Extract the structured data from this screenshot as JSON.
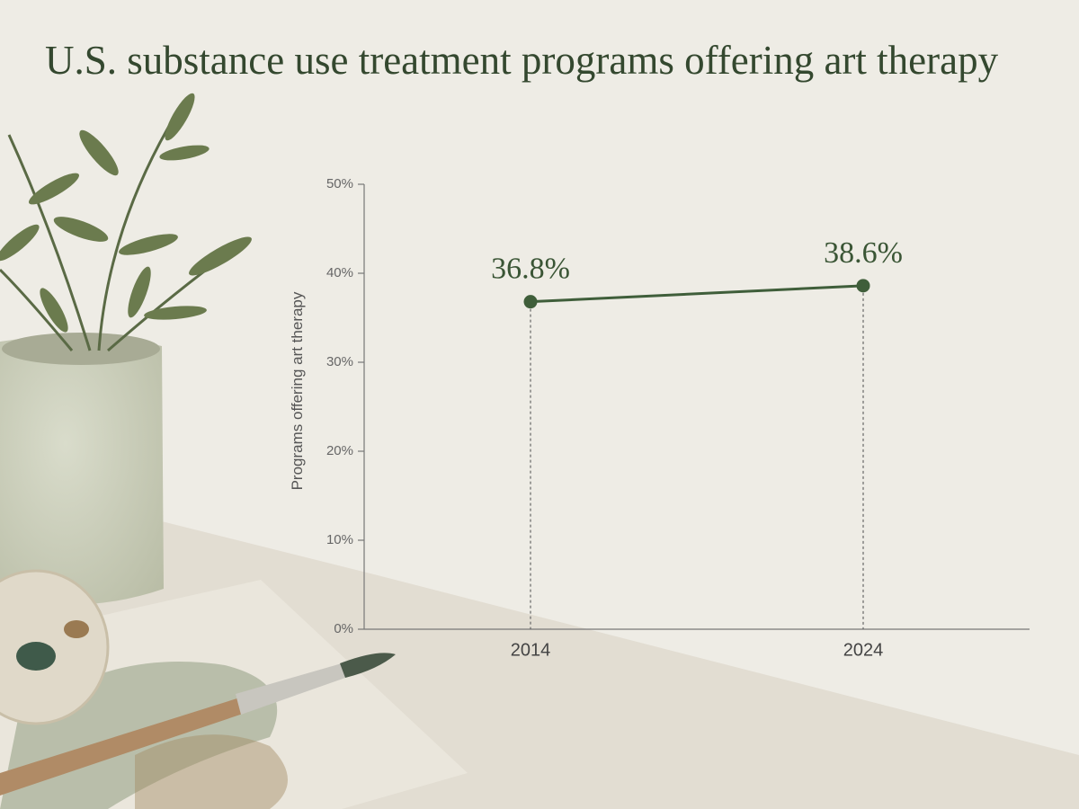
{
  "chart_data": {
    "type": "line",
    "title": "U.S. substance use treatment programs offering art therapy",
    "y_label": "Programs offering art therapy",
    "categories": [
      "2014",
      "2024"
    ],
    "values": [
      36.8,
      38.6
    ],
    "value_labels": [
      "36.8%",
      "38.6%"
    ],
    "color": "#3f5e3a",
    "ylim": [
      0,
      50
    ],
    "yticks": [
      {
        "value": 0,
        "label": "0%"
      },
      {
        "value": 10,
        "label": "10%"
      },
      {
        "value": 20,
        "label": "20%"
      },
      {
        "value": 30,
        "label": "30%"
      },
      {
        "value": 40,
        "label": "40%"
      },
      {
        "value": 50,
        "label": "50%"
      }
    ]
  }
}
